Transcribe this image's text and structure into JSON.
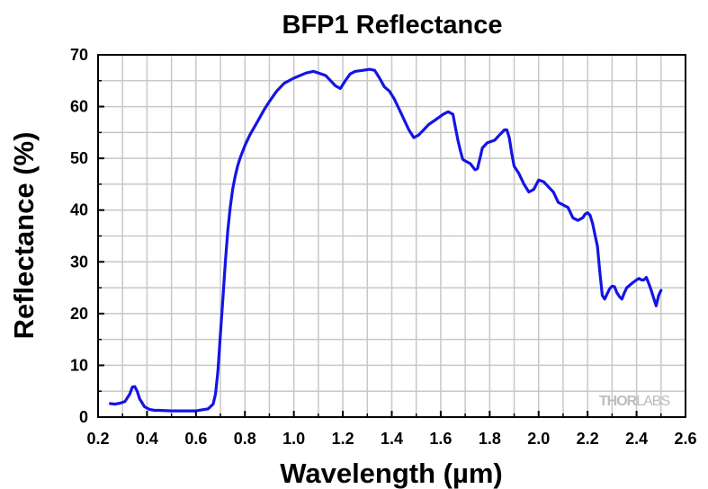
{
  "chart_data": {
    "type": "line",
    "title": "BFP1 Reflectance",
    "xlabel": "Wavelength (µm)",
    "ylabel": "Reflectance (%)",
    "xlim": [
      0.2,
      2.6
    ],
    "ylim": [
      0,
      70
    ],
    "xticks": [
      "0.2",
      "0.4",
      "0.6",
      "0.8",
      "1.0",
      "1.2",
      "1.4",
      "1.6",
      "1.8",
      "2.0",
      "2.2",
      "2.4",
      "2.6"
    ],
    "yticks": [
      "0",
      "10",
      "20",
      "30",
      "40",
      "50",
      "60",
      "70"
    ],
    "grid": true,
    "watermark": {
      "part1": "THOR",
      "part2": "LABS"
    },
    "series": [
      {
        "name": "BFP1",
        "color": "#1414e6",
        "x": [
          0.25,
          0.27,
          0.29,
          0.31,
          0.33,
          0.34,
          0.35,
          0.36,
          0.37,
          0.39,
          0.41,
          0.43,
          0.45,
          0.5,
          0.55,
          0.6,
          0.65,
          0.67,
          0.68,
          0.69,
          0.7,
          0.71,
          0.72,
          0.73,
          0.74,
          0.75,
          0.76,
          0.77,
          0.78,
          0.8,
          0.82,
          0.85,
          0.88,
          0.9,
          0.93,
          0.96,
          1.0,
          1.05,
          1.08,
          1.1,
          1.13,
          1.15,
          1.17,
          1.19,
          1.21,
          1.23,
          1.25,
          1.28,
          1.31,
          1.33,
          1.35,
          1.37,
          1.39,
          1.41,
          1.43,
          1.45,
          1.47,
          1.49,
          1.51,
          1.53,
          1.55,
          1.58,
          1.61,
          1.63,
          1.65,
          1.66,
          1.67,
          1.68,
          1.69,
          1.7,
          1.72,
          1.74,
          1.75,
          1.76,
          1.77,
          1.79,
          1.82,
          1.84,
          1.86,
          1.87,
          1.88,
          1.89,
          1.9,
          1.92,
          1.94,
          1.96,
          1.98,
          2.0,
          2.02,
          2.04,
          2.06,
          2.08,
          2.1,
          2.12,
          2.14,
          2.16,
          2.18,
          2.19,
          2.2,
          2.21,
          2.22,
          2.24,
          2.25,
          2.26,
          2.27,
          2.28,
          2.29,
          2.3,
          2.31,
          2.32,
          2.33,
          2.34,
          2.35,
          2.36,
          2.38,
          2.4,
          2.41,
          2.42,
          2.43,
          2.44,
          2.45,
          2.46,
          2.47,
          2.48,
          2.49,
          2.5
        ],
        "values": [
          2.6,
          2.5,
          2.7,
          3.0,
          4.5,
          5.8,
          5.9,
          5.0,
          3.5,
          2.0,
          1.5,
          1.3,
          1.3,
          1.2,
          1.2,
          1.2,
          1.6,
          2.5,
          4.5,
          9.0,
          16.0,
          23.0,
          30.0,
          36.0,
          40.5,
          44.0,
          46.5,
          48.5,
          50.0,
          52.5,
          54.5,
          57.0,
          59.5,
          61.0,
          63.0,
          64.5,
          65.5,
          66.5,
          66.8,
          66.5,
          66.0,
          65.0,
          64.0,
          63.5,
          65.0,
          66.3,
          66.8,
          67.0,
          67.2,
          67.0,
          65.5,
          63.8,
          63.0,
          61.5,
          59.5,
          57.5,
          55.5,
          54.0,
          54.5,
          55.5,
          56.5,
          57.5,
          58.5,
          59.0,
          58.5,
          56.0,
          53.5,
          51.5,
          49.8,
          49.5,
          49.0,
          47.8,
          48.0,
          50.0,
          52.0,
          53.0,
          53.5,
          54.5,
          55.5,
          55.5,
          54.0,
          51.0,
          48.5,
          47.0,
          45.0,
          43.5,
          44.0,
          45.8,
          45.5,
          44.5,
          43.5,
          41.5,
          41.0,
          40.5,
          38.5,
          38.0,
          38.5,
          39.2,
          39.5,
          39.0,
          37.5,
          33.0,
          28.0,
          23.5,
          22.8,
          23.8,
          24.8,
          25.3,
          25.2,
          24.0,
          23.3,
          22.8,
          24.0,
          25.0,
          25.8,
          26.5,
          26.8,
          26.5,
          26.5,
          27.0,
          25.8,
          24.5,
          23.0,
          21.5,
          23.5,
          24.5
        ]
      }
    ]
  }
}
